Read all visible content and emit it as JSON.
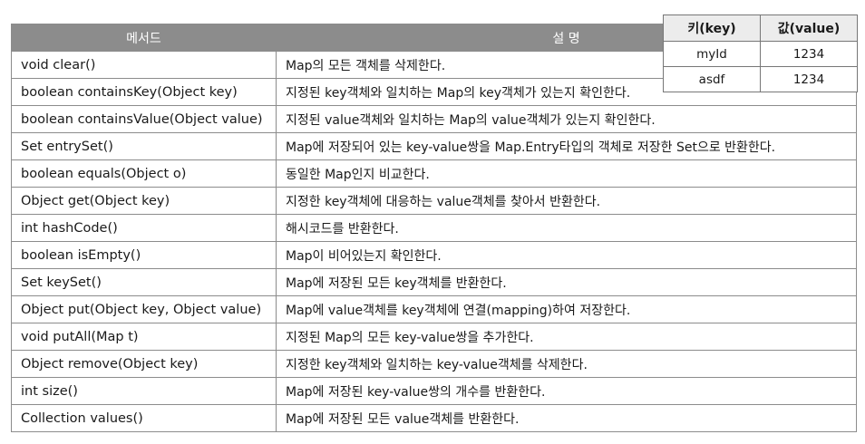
{
  "method_table": {
    "headers": [
      "메서드",
      "설 명"
    ],
    "rows": [
      {
        "method": "void clear()",
        "description": "Map의 모든 객체를 삭제한다."
      },
      {
        "method": "boolean containsKey(Object key)",
        "description": "지정된 key객체와 일치하는 Map의 key객체가 있는지 확인한다."
      },
      {
        "method": "boolean containsValue(Object value)",
        "description": "지정된 value객체와 일치하는 Map의 value객체가 있는지 확인한다."
      },
      {
        "method": "Set entrySet()",
        "description": "Map에 저장되어 있는 key-value쌍을 Map.Entry타입의 객체로 저장한 Set으로 반환한다."
      },
      {
        "method": "boolean equals(Object o)",
        "description": "동일한 Map인지 비교한다."
      },
      {
        "method": "Object get(Object key)",
        "description": "지정한 key객체에 대응하는 value객체를 찾아서 반환한다."
      },
      {
        "method": "int hashCode()",
        "description": "해시코드를 반환한다."
      },
      {
        "method": "boolean isEmpty()",
        "description": "Map이 비어있는지 확인한다."
      },
      {
        "method": "Set keySet()",
        "description": "Map에 저장된 모든 key객체를 반환한다."
      },
      {
        "method": "Object put(Object key, Object value)",
        "description": "Map에 value객체를 key객체에 연결(mapping)하여 저장한다."
      },
      {
        "method": "void putAll(Map t)",
        "description": "지정된 Map의 모든 key-value쌍을 추가한다."
      },
      {
        "method": "Object remove(Object key)",
        "description": "지정한 key객체와 일치하는 key-value객체를 삭제한다."
      },
      {
        "method": "int size()",
        "description": "Map에 저장된 key-value쌍의 개수를 반환한다."
      },
      {
        "method": "Collection values()",
        "description": "Map에 저장된 모든 value객체를 반환한다."
      }
    ]
  },
  "kv_table": {
    "headers": [
      "키(key)",
      "값(value)"
    ],
    "rows": [
      {
        "key": "myId",
        "value": "1234"
      },
      {
        "key": "asdf",
        "value": "1234"
      }
    ]
  }
}
